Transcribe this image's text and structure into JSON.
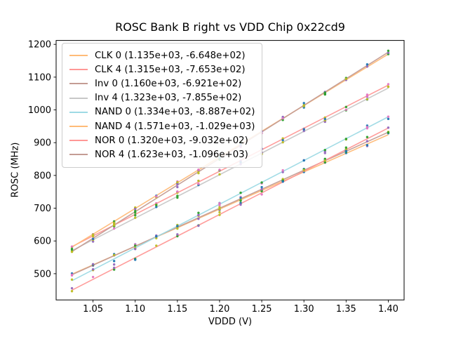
{
  "title": "ROSC Bank B right vs VDD Chip 0x22cd9",
  "chart_data": {
    "type": "scatter",
    "title": "ROSC Bank B right vs VDD Chip 0x22cd9",
    "xlabel": "VDDD (V)",
    "ylabel": "ROSC (MHz)",
    "xlim": [
      1.00625,
      1.41875
    ],
    "ylim": [
      420,
      1212
    ],
    "xticks": [
      1.05,
      1.1,
      1.15,
      1.2,
      1.25,
      1.3,
      1.35,
      1.4
    ],
    "xtick_labels": [
      "1.05",
      "1.10",
      "1.15",
      "1.20",
      "1.25",
      "1.30",
      "1.35",
      "1.40"
    ],
    "yticks": [
      500,
      600,
      700,
      800,
      900,
      1000,
      1100,
      1200
    ],
    "ytick_labels": [
      "500",
      "600",
      "700",
      "800",
      "900",
      "1000",
      "1100",
      "1200"
    ],
    "grid": false,
    "legend_position": "upper left",
    "fit_x_range": [
      1.025,
      1.4
    ],
    "x_samples": [
      1.025,
      1.05,
      1.075,
      1.1,
      1.125,
      1.15,
      1.175,
      1.2,
      1.225,
      1.25,
      1.275,
      1.3,
      1.325,
      1.35,
      1.375,
      1.4
    ],
    "scatter_point_colors": [
      "#1f77b4",
      "#2ca02c",
      "#bcbd22",
      "#9467bd",
      "#e377c2"
    ],
    "series": [
      {
        "name": "CLK 0",
        "legend_label": "CLK 0 (1.135e+03, -6.648e+02)",
        "slope": 1135,
        "intercept": -664.8,
        "line_color": "#ffbb78"
      },
      {
        "name": "CLK 4",
        "legend_label": "CLK 4 (1.315e+03, -7.653e+02)",
        "slope": 1315,
        "intercept": -765.3,
        "line_color": "#ff9896"
      },
      {
        "name": "Inv 0",
        "legend_label": "Inv 0 (1.160e+03, -6.921e+02)",
        "slope": 1160,
        "intercept": -692.1,
        "line_color": "#c49c94"
      },
      {
        "name": "Inv 4",
        "legend_label": "Inv 4 (1.323e+03, -7.855e+02)",
        "slope": 1323,
        "intercept": -785.5,
        "line_color": "#c7c7c7"
      },
      {
        "name": "NAND 0",
        "legend_label": "NAND 0 (1.334e+03, -8.887e+02)",
        "slope": 1334,
        "intercept": -888.7,
        "line_color": "#9edae5"
      },
      {
        "name": "NAND 4",
        "legend_label": "NAND 4 (1.571e+03, -1.029e+03)",
        "slope": 1571,
        "intercept": -1029,
        "line_color": "#ffbb78"
      },
      {
        "name": "NOR 0",
        "legend_label": "NOR 0 (1.320e+03, -9.032e+02)",
        "slope": 1320,
        "intercept": -903.2,
        "line_color": "#ff9896"
      },
      {
        "name": "NOR 4",
        "legend_label": "NOR 4 (1.623e+03, -1.096e+03)",
        "slope": 1623,
        "intercept": -1096,
        "line_color": "#c49c94"
      }
    ]
  }
}
